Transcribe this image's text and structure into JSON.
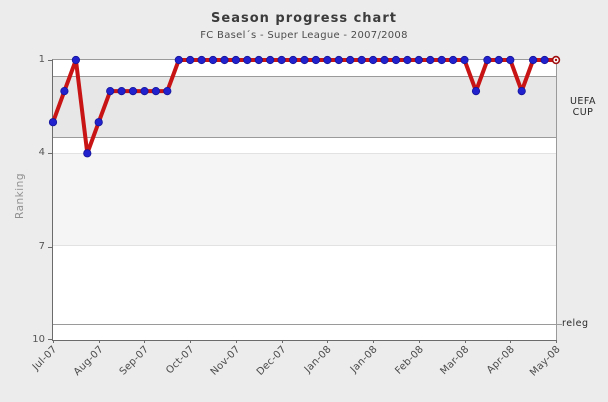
{
  "header": {
    "title": "Season progress chart",
    "subtitle": "FC Basel´s - Super League - 2007/2008"
  },
  "chart_data": {
    "type": "line",
    "title": "Season progress chart",
    "subtitle": "FC Basel´s - Super League - 2007/2008",
    "ylabel": "Ranking",
    "y_axis_reversed": true,
    "ylim_top": 1,
    "ylim_bottom": 10,
    "y_ticks": [
      1,
      4,
      7,
      10
    ],
    "x_tick_labels": [
      "Jul-07",
      "Aug-07",
      "Sep-07",
      "Oct-07",
      "Nov-07",
      "Dec-07",
      "Jan-08",
      "Jan-08",
      "Feb-08",
      "Mar-08",
      "Apr-08",
      "May-08"
    ],
    "x_tick_every": 4,
    "values": [
      3,
      2,
      1,
      4,
      3,
      2,
      2,
      2,
      2,
      2,
      2,
      1,
      1,
      1,
      1,
      1,
      1,
      1,
      1,
      1,
      1,
      1,
      1,
      1,
      1,
      1,
      1,
      1,
      1,
      1,
      1,
      1,
      1,
      1,
      1,
      1,
      1,
      2,
      1,
      1,
      1,
      2,
      1,
      1,
      1
    ],
    "zones": {
      "uefa_cup": {
        "label_line1": "UEFA",
        "label_line2": "CUP",
        "from_rank": 1.5,
        "to_rank": 3.5
      },
      "alt_band": {
        "from_rank": 4,
        "to_rank": 7
      },
      "relegation": {
        "label": "releg",
        "at_rank": 9.5
      }
    },
    "legend": "none",
    "colors": {
      "line": "#c81414",
      "marker": "#2121cd",
      "marker_edge": "#15159a",
      "last_marker_ring": "#a01010",
      "uefa_band": "#e7e7e7",
      "alt_band": "#f5f5f5",
      "plot_background": "#ffffff",
      "page_background": "#ececec"
    }
  }
}
